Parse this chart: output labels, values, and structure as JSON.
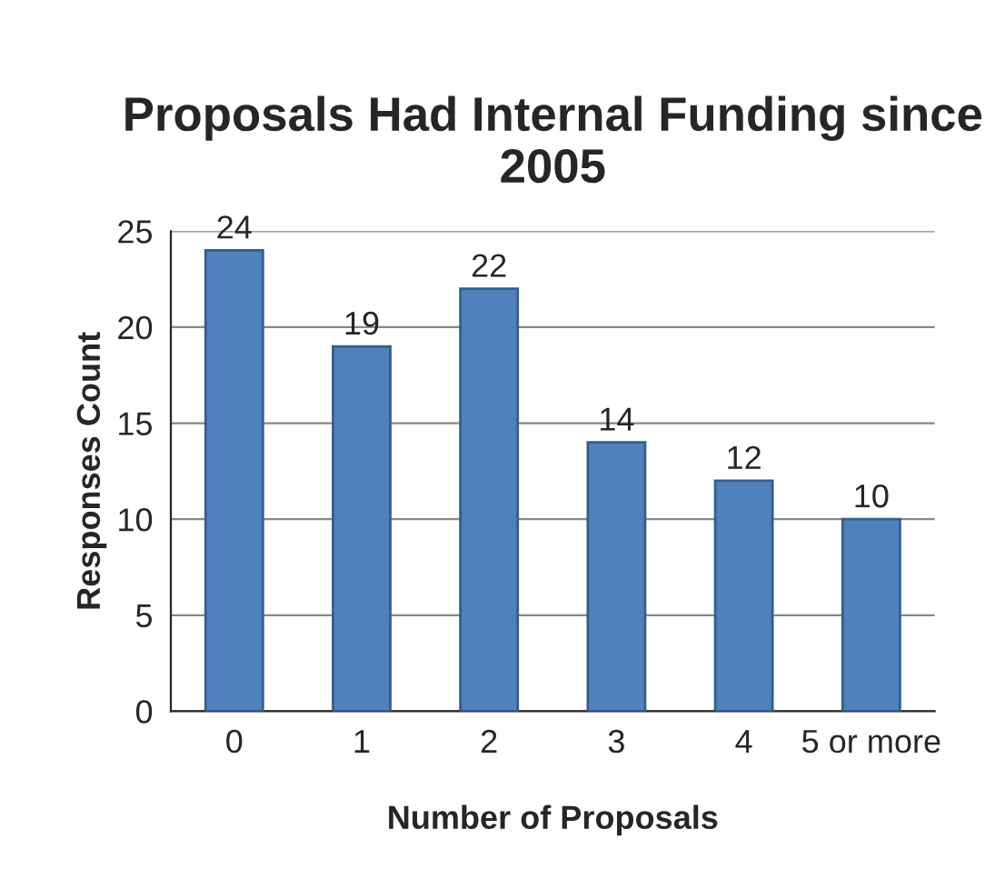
{
  "chart_data": {
    "type": "bar",
    "title": "Proposals Had Internal Funding since 2005",
    "xlabel": "Number of Proposals",
    "ylabel": "Responses Count",
    "categories": [
      "0",
      "1",
      "2",
      "3",
      "4",
      "5 or more"
    ],
    "values": [
      24,
      19,
      22,
      14,
      12,
      10
    ],
    "color": "#4f81bd",
    "ylim": [
      0,
      25
    ],
    "yticks": [
      0,
      5,
      10,
      15,
      20,
      25
    ],
    "grid": "y",
    "data_labels": true,
    "legend": false
  }
}
